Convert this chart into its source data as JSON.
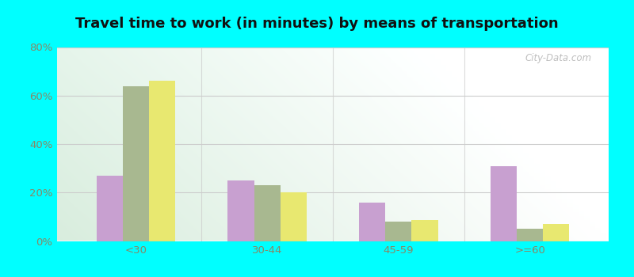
{
  "title": "Travel time to work (in minutes) by means of transportation",
  "categories": [
    "<30",
    "30-44",
    "45-59",
    ">=60"
  ],
  "series": {
    "Public transportation - Texas": [
      27,
      25,
      16,
      31
    ],
    "Other means - Overton": [
      64,
      23,
      8,
      5
    ],
    "Other means - Texas": [
      66,
      20,
      8.5,
      7
    ]
  },
  "colors": {
    "Public transportation - Texas": "#c8a0d0",
    "Other means - Overton": "#a8b890",
    "Other means - Texas": "#e8e870"
  },
  "ylim": [
    0,
    80
  ],
  "yticks": [
    0,
    20,
    40,
    60,
    80
  ],
  "ytick_labels": [
    "0%",
    "20%",
    "40%",
    "60%",
    "80%"
  ],
  "outer_background": "#00ffff",
  "bar_width": 0.2,
  "title_fontsize": 13,
  "watermark": "City-Data.com",
  "tick_color": "#888866",
  "grid_color": "#cccccc"
}
